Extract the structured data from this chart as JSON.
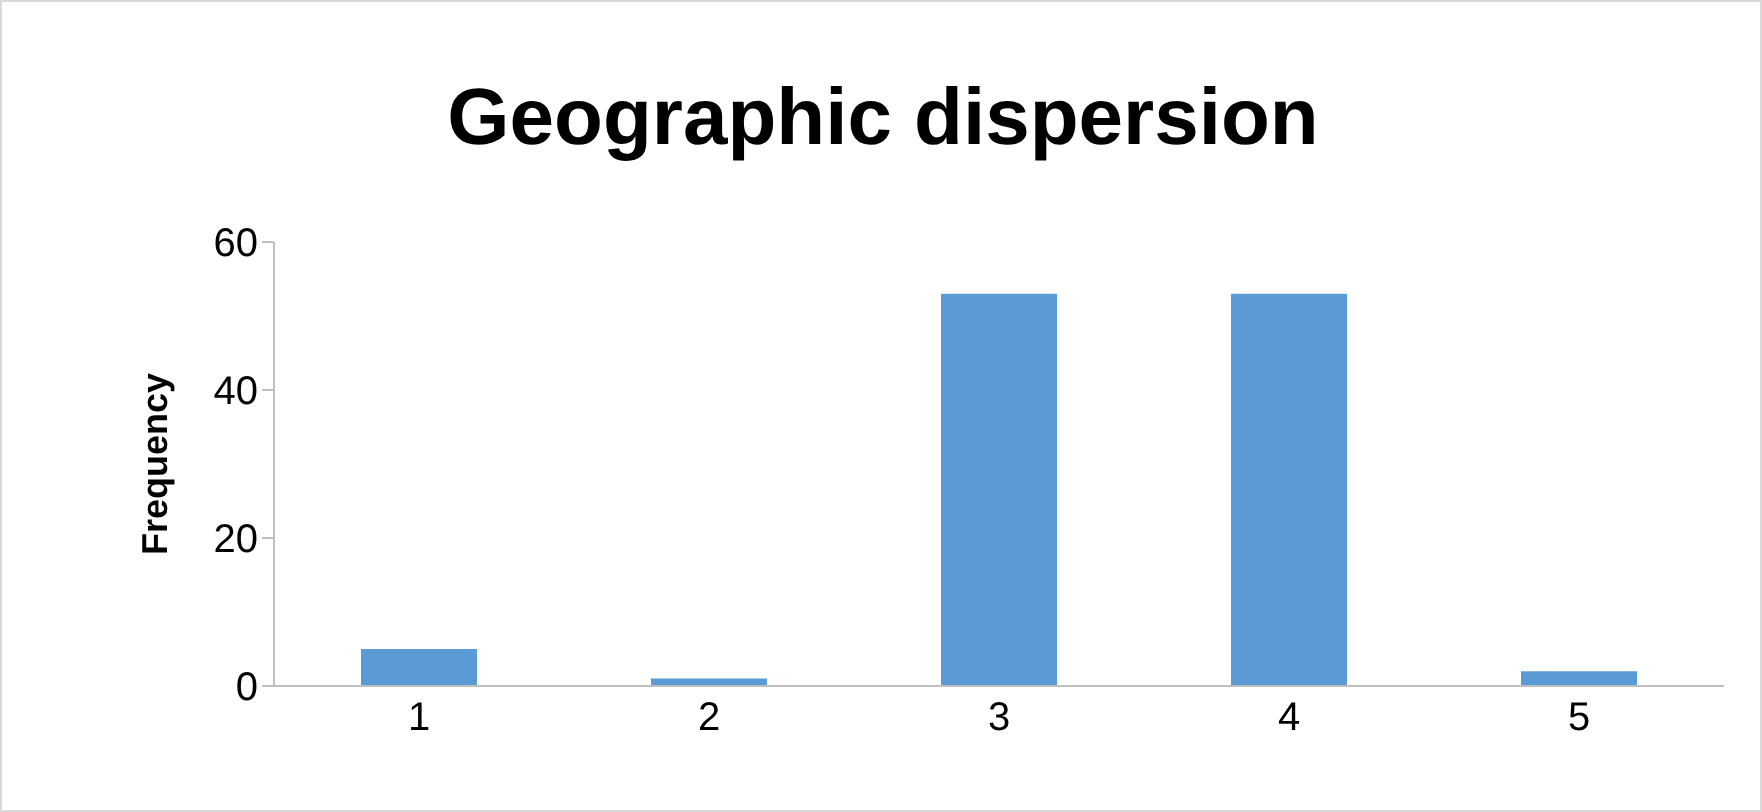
{
  "chart_data": {
    "type": "bar",
    "title": "Geographic dispersion",
    "ylabel": "Frequency",
    "categories": [
      "1",
      "2",
      "3",
      "4",
      "5"
    ],
    "values": [
      5,
      1,
      53,
      53,
      2
    ],
    "color": "#5b9bd5",
    "ylim": [
      0,
      60
    ],
    "yticks": [
      0,
      20,
      40,
      60
    ],
    "grid": false,
    "legend": false
  }
}
